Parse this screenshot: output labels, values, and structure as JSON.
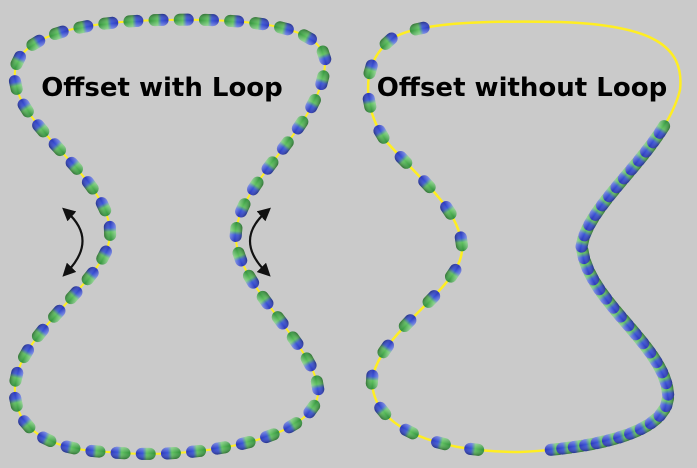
{
  "panels": {
    "left": {
      "title": "Offset with Loop"
    },
    "right": {
      "title": "Offset without Loop"
    }
  },
  "colors": {
    "background": "#cacaca",
    "spline": "#ffee22",
    "bead_blue": "#3344cc",
    "bead_green": "#44bb44",
    "arrow": "#111111"
  },
  "icons": {
    "loop_arrows": "curved-double-arrow-icon"
  }
}
